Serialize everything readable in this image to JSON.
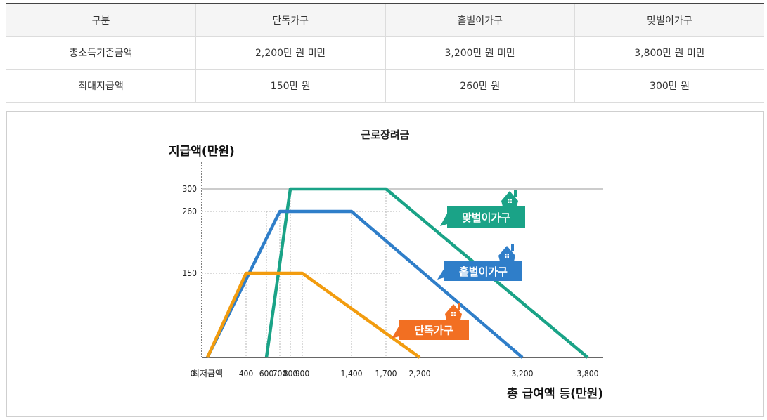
{
  "table": {
    "headers": [
      "구분",
      "단독가구",
      "홑벌이가구",
      "맞벌이가구"
    ],
    "rows": [
      [
        "총소득기준금액",
        "2,200만 원 미만",
        "3,200만 원 미만",
        "3,800만 원 미만"
      ],
      [
        "최대지급액",
        "150만 원",
        "260만 원",
        "300만 원"
      ]
    ]
  },
  "chart_data": {
    "type": "line",
    "title": "근로장려금",
    "ylabel": "지급액(만원)",
    "xlabel": "총 급여액 등(만원)",
    "x_origin_label": "0",
    "x_ticks": [
      {
        "label": "최저금액",
        "x": 50
      },
      {
        "label": "400",
        "x": 400
      },
      {
        "label": "600",
        "x": 600
      },
      {
        "label": "700",
        "x": 700
      },
      {
        "label": "800",
        "x": 800
      },
      {
        "label": "900",
        "x": 900
      },
      {
        "label": "1,400",
        "x": 1400
      },
      {
        "label": "1,700",
        "x": 1700
      },
      {
        "label": "2,200",
        "x": 2200
      },
      {
        "label": "3,200",
        "x": 3200
      },
      {
        "label": "3,800",
        "x": 3800
      }
    ],
    "y_ticks": [
      150,
      260,
      300
    ],
    "ylim": [
      0,
      340
    ],
    "grid": "dotted guide lines at key values",
    "series": [
      {
        "name": "맞벌이가구",
        "color": "#1aa387",
        "points": [
          [
            600,
            0
          ],
          [
            800,
            300
          ],
          [
            1700,
            300
          ],
          [
            3800,
            0
          ]
        ]
      },
      {
        "name": "홑벌이가구",
        "color": "#2f7ec9",
        "points": [
          [
            50,
            0
          ],
          [
            700,
            260
          ],
          [
            1400,
            260
          ],
          [
            3200,
            0
          ]
        ]
      },
      {
        "name": "단독가구",
        "color": "#f29c0f",
        "points": [
          [
            50,
            0
          ],
          [
            400,
            150
          ],
          [
            900,
            150
          ],
          [
            2200,
            0
          ]
        ]
      }
    ],
    "legend": [
      {
        "label": "맞벌이가구",
        "color": "#1aa387"
      },
      {
        "label": "홑벌이가구",
        "color": "#2f7ec9"
      },
      {
        "label": "단독가구",
        "color": "#f26f22"
      }
    ]
  }
}
